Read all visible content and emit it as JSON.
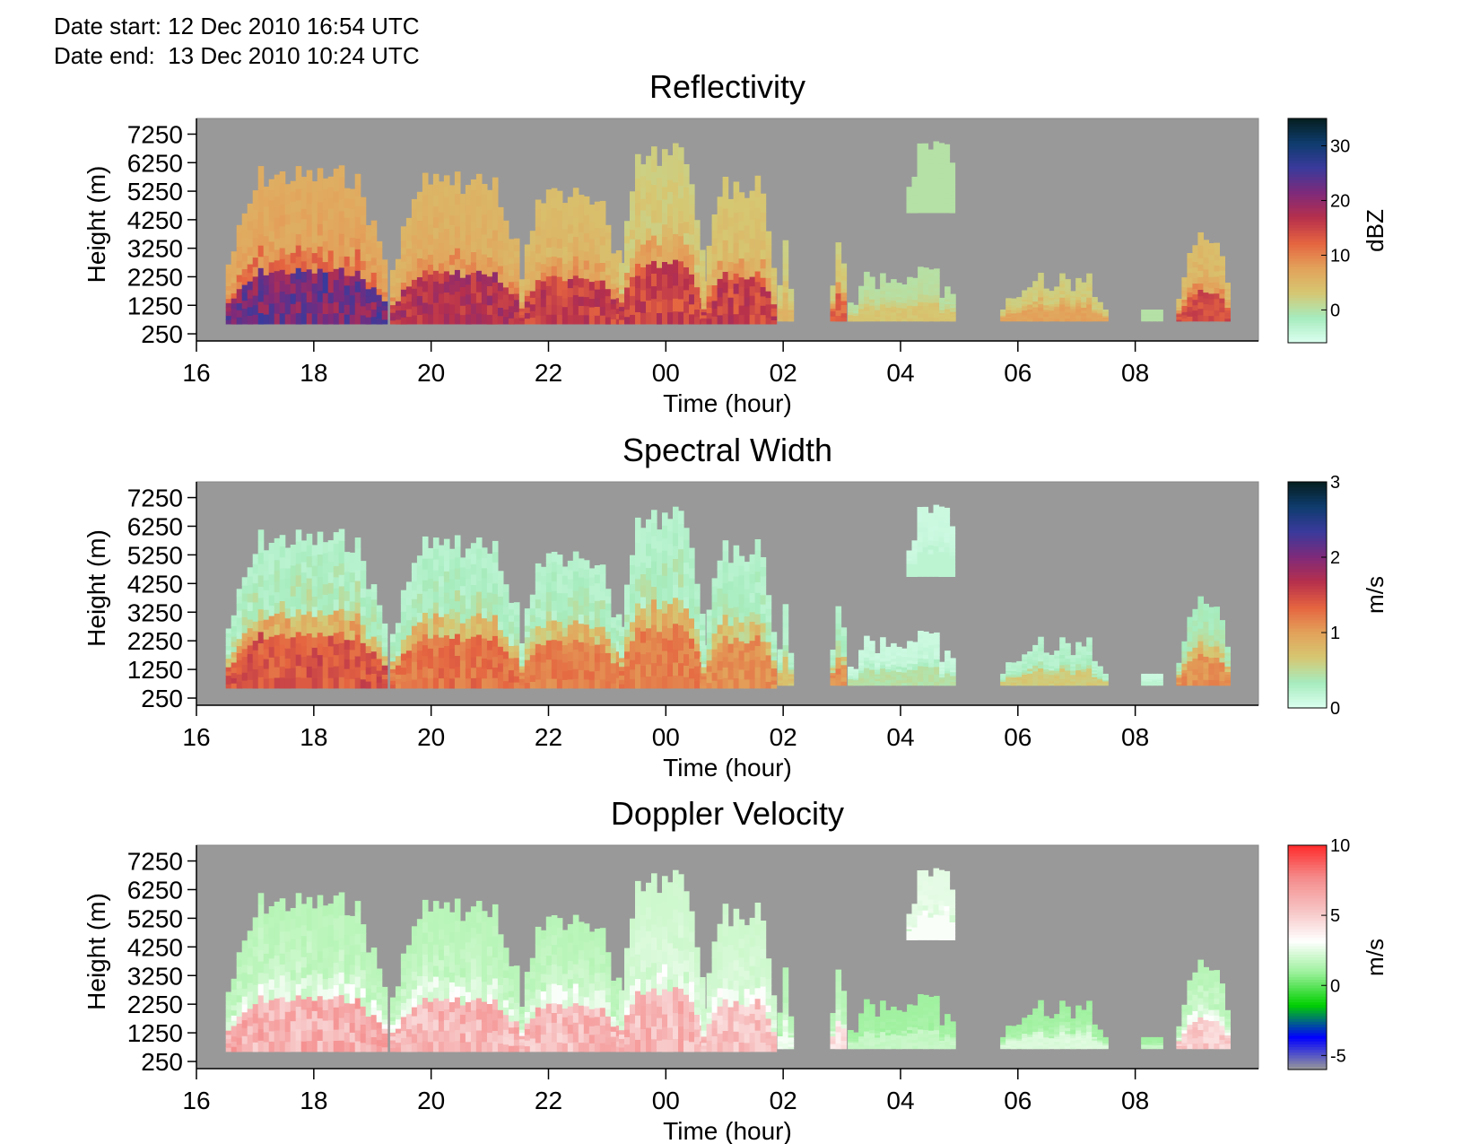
{
  "header": {
    "date_start_label": "Date start:",
    "date_start_value": "12 Dec 2010 16:54 UTC",
    "date_end_label": "Date end:",
    "date_end_value": "13 Dec 2010 10:24 UTC"
  },
  "colors": {
    "background_no_data": "#999999",
    "reflectivity_scale": [
      "#dcfff0",
      "#a6ecbe",
      "#d6c772",
      "#e3a15a",
      "#e56440",
      "#b7304c",
      "#7f2a7a",
      "#3a3a9c",
      "#0e3c6e",
      "#061e1e"
    ],
    "spectral_width_scale": [
      "#dcfff0",
      "#a6ecbe",
      "#d6c772",
      "#e3a15a",
      "#e56440",
      "#b7304c",
      "#7f2a7a",
      "#3a3a9c",
      "#0e3c6e",
      "#061e1e"
    ],
    "doppler_scale": [
      "#999999",
      "#0000ff",
      "#00d000",
      "#99f099",
      "#ffffff",
      "#f7c2c2",
      "#f58a8a",
      "#ff2a2a"
    ]
  },
  "chart_data": [
    {
      "type": "heatmap",
      "title": "Reflectivity",
      "xlabel": "Time (hour)",
      "ylabel": "Height (m)",
      "x_range": [
        16,
        34.1
      ],
      "x_ticks": [
        16,
        18,
        20,
        22,
        24,
        26,
        28,
        30,
        32
      ],
      "x_tick_labels": [
        "16",
        "18",
        "20",
        "22",
        "00",
        "02",
        "04",
        "06",
        "08"
      ],
      "y_range": [
        0,
        7800
      ],
      "y_ticks": [
        250,
        1250,
        2250,
        3250,
        4250,
        5250,
        6250,
        7250
      ],
      "y_tick_labels": [
        "250",
        "1250",
        "2250",
        "3250",
        "4250",
        "5250",
        "6250",
        "7250"
      ],
      "colorbar": {
        "unit": "dBZ",
        "range": [
          -6,
          35
        ],
        "ticks": [
          0,
          10,
          20,
          30
        ],
        "tick_labels": [
          "0",
          "10",
          "20",
          "30"
        ]
      },
      "echo_profiles": [
        {
          "t0": 16.5,
          "t1": 19.2,
          "base": 600,
          "top": 6200,
          "max": 26,
          "mid": 12,
          "upper": 6
        },
        {
          "t0": 19.3,
          "t1": 21.5,
          "base": 600,
          "top": 6000,
          "max": 20,
          "mid": 10,
          "upper": 5
        },
        {
          "t0": 21.5,
          "t1": 23.2,
          "base": 600,
          "top": 5500,
          "max": 18,
          "mid": 9,
          "upper": 4
        },
        {
          "t0": 23.2,
          "t1": 24.6,
          "base": 600,
          "top": 7000,
          "max": 18,
          "mid": 8,
          "upper": 2
        },
        {
          "t0": 24.6,
          "t1": 25.8,
          "base": 600,
          "top": 5800,
          "max": 18,
          "mid": 8,
          "upper": 3
        },
        {
          "t0": 25.9,
          "t1": 26.1,
          "base": 700,
          "top": 3600,
          "max": 6,
          "mid": 4,
          "upper": 2
        },
        {
          "t0": 26.8,
          "t1": 27.0,
          "base": 700,
          "top": 3800,
          "max": 14,
          "mid": 8,
          "upper": 2
        },
        {
          "t0": 27.1,
          "t1": 28.9,
          "base": 700,
          "top": 2700,
          "max": 4,
          "mid": 2,
          "upper": 0
        },
        {
          "t0": 28.1,
          "t1": 28.9,
          "base": 4500,
          "top": 7300,
          "max": 0,
          "mid": 0,
          "upper": 0
        },
        {
          "t0": 29.7,
          "t1": 31.5,
          "base": 700,
          "top": 2500,
          "max": 8,
          "mid": 6,
          "upper": 2
        },
        {
          "t0": 32.1,
          "t1": 32.4,
          "base": 700,
          "top": 1500,
          "max": 0,
          "mid": 0,
          "upper": 0
        },
        {
          "t0": 32.7,
          "t1": 33.6,
          "base": 700,
          "top": 3900,
          "max": 16,
          "mid": 10,
          "upper": 4
        }
      ]
    },
    {
      "type": "heatmap",
      "title": "Spectral Width",
      "xlabel": "Time (hour)",
      "ylabel": "Height (m)",
      "x_range": [
        16,
        34.1
      ],
      "x_ticks": [
        16,
        18,
        20,
        22,
        24,
        26,
        28,
        30,
        32
      ],
      "x_tick_labels": [
        "16",
        "18",
        "20",
        "22",
        "00",
        "02",
        "04",
        "06",
        "08"
      ],
      "y_range": [
        0,
        7800
      ],
      "y_ticks": [
        250,
        1250,
        2250,
        3250,
        4250,
        5250,
        6250,
        7250
      ],
      "y_tick_labels": [
        "250",
        "1250",
        "2250",
        "3250",
        "4250",
        "5250",
        "6250",
        "7250"
      ],
      "colorbar": {
        "unit": "m/s",
        "range": [
          0,
          3
        ],
        "ticks": [
          0,
          1,
          2,
          3
        ],
        "tick_labels": [
          "0",
          "1",
          "2",
          "3"
        ]
      },
      "echo_profiles": [
        {
          "t0": 16.5,
          "t1": 19.2,
          "base": 600,
          "top": 6200,
          "max": 1.6,
          "mid": 1.0,
          "upper": 0.2
        },
        {
          "t0": 19.3,
          "t1": 21.5,
          "base": 600,
          "top": 6000,
          "max": 1.4,
          "mid": 0.9,
          "upper": 0.2
        },
        {
          "t0": 21.5,
          "t1": 23.2,
          "base": 600,
          "top": 5500,
          "max": 1.3,
          "mid": 0.9,
          "upper": 0.2
        },
        {
          "t0": 23.2,
          "t1": 24.6,
          "base": 600,
          "top": 7000,
          "max": 1.3,
          "mid": 0.9,
          "upper": 0.2
        },
        {
          "t0": 24.6,
          "t1": 25.8,
          "base": 600,
          "top": 5800,
          "max": 1.2,
          "mid": 0.8,
          "upper": 0.2
        },
        {
          "t0": 25.9,
          "t1": 26.1,
          "base": 700,
          "top": 3600,
          "max": 0.8,
          "mid": 0.5,
          "upper": 0.2
        },
        {
          "t0": 26.8,
          "t1": 27.0,
          "base": 700,
          "top": 3800,
          "max": 1.2,
          "mid": 0.7,
          "upper": 0.2
        },
        {
          "t0": 27.1,
          "t1": 28.9,
          "base": 700,
          "top": 2700,
          "max": 0.5,
          "mid": 0.3,
          "upper": 0.1
        },
        {
          "t0": 28.1,
          "t1": 28.9,
          "base": 4500,
          "top": 7300,
          "max": 0.2,
          "mid": 0.2,
          "upper": 0.1
        },
        {
          "t0": 29.7,
          "t1": 31.5,
          "base": 700,
          "top": 2500,
          "max": 0.7,
          "mid": 0.5,
          "upper": 0.2
        },
        {
          "t0": 32.1,
          "t1": 32.4,
          "base": 700,
          "top": 1500,
          "max": 0.2,
          "mid": 0.2,
          "upper": 0.1
        },
        {
          "t0": 32.7,
          "t1": 33.6,
          "base": 700,
          "top": 3900,
          "max": 1.2,
          "mid": 0.8,
          "upper": 0.3
        }
      ]
    },
    {
      "type": "heatmap",
      "title": "Doppler Velocity",
      "xlabel": "Time (hour)",
      "ylabel": "Height (m)",
      "x_range": [
        16,
        34.1
      ],
      "x_ticks": [
        16,
        18,
        20,
        22,
        24,
        26,
        28,
        30,
        32
      ],
      "x_tick_labels": [
        "16",
        "18",
        "20",
        "22",
        "00",
        "02",
        "04",
        "06",
        "08"
      ],
      "y_range": [
        0,
        7800
      ],
      "y_ticks": [
        250,
        1250,
        2250,
        3250,
        4250,
        5250,
        6250,
        7250
      ],
      "y_tick_labels": [
        "250",
        "1250",
        "2250",
        "3250",
        "4250",
        "5250",
        "6250",
        "7250"
      ],
      "colorbar": {
        "unit": "m/s",
        "range": [
          -6,
          10
        ],
        "ticks": [
          -5,
          0,
          5,
          10
        ],
        "tick_labels": [
          "-5",
          "0",
          "5",
          "10"
        ]
      },
      "echo_profiles": [
        {
          "t0": 16.5,
          "t1": 19.2,
          "base": 600,
          "top": 6200,
          "max": 7.5,
          "mid": 3.0,
          "upper": 1.5
        },
        {
          "t0": 19.3,
          "t1": 21.5,
          "base": 600,
          "top": 6000,
          "max": 7.0,
          "mid": 3.0,
          "upper": 1.5
        },
        {
          "t0": 21.5,
          "t1": 23.2,
          "base": 600,
          "top": 5500,
          "max": 7.0,
          "mid": 3.0,
          "upper": 1.5
        },
        {
          "t0": 23.2,
          "t1": 24.6,
          "base": 600,
          "top": 7000,
          "max": 7.0,
          "mid": 3.0,
          "upper": 2.0
        },
        {
          "t0": 24.6,
          "t1": 25.8,
          "base": 600,
          "top": 5800,
          "max": 6.5,
          "mid": 3.0,
          "upper": 2.0
        },
        {
          "t0": 25.9,
          "t1": 26.1,
          "base": 700,
          "top": 3600,
          "max": 3.0,
          "mid": 2.0,
          "upper": 1.5
        },
        {
          "t0": 26.8,
          "t1": 27.0,
          "base": 700,
          "top": 3800,
          "max": 5.0,
          "mid": 2.5,
          "upper": 1.5
        },
        {
          "t0": 27.1,
          "t1": 28.9,
          "base": 700,
          "top": 2700,
          "max": 2.0,
          "mid": 1.5,
          "upper": 1.0
        },
        {
          "t0": 28.1,
          "t1": 28.9,
          "base": 4500,
          "top": 7300,
          "max": 3.0,
          "mid": 3.0,
          "upper": 2.5
        },
        {
          "t0": 29.7,
          "t1": 31.5,
          "base": 700,
          "top": 2500,
          "max": 2.5,
          "mid": 2.0,
          "upper": 1.0
        },
        {
          "t0": 32.1,
          "t1": 32.4,
          "base": 700,
          "top": 1500,
          "max": 2.0,
          "mid": 1.5,
          "upper": 1.0
        },
        {
          "t0": 32.7,
          "t1": 33.6,
          "base": 700,
          "top": 3900,
          "max": 6.0,
          "mid": 3.0,
          "upper": 1.5
        }
      ]
    }
  ]
}
